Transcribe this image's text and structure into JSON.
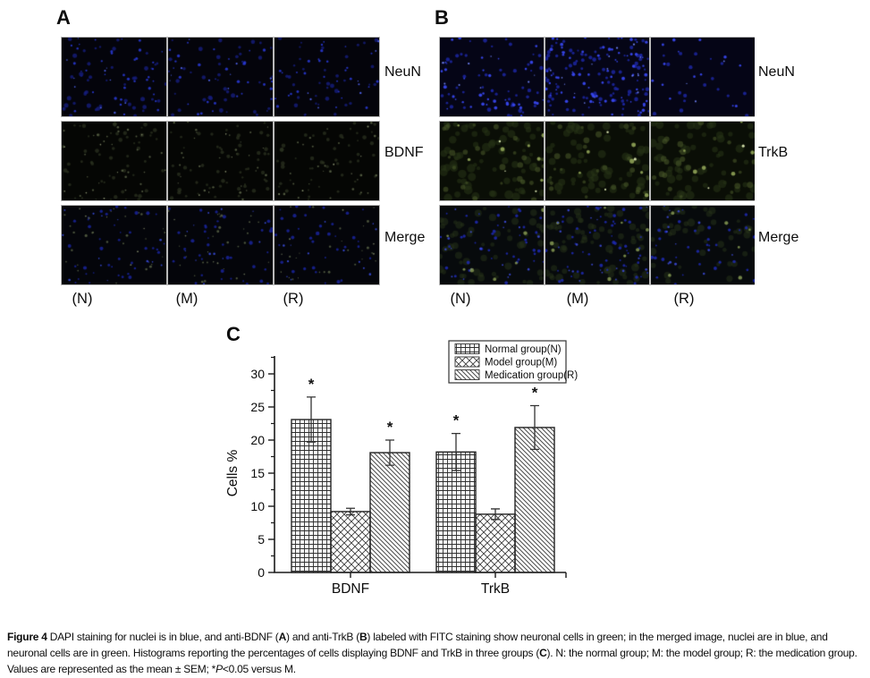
{
  "figure": {
    "panel_a": {
      "label": "A",
      "rows": [
        {
          "label": "NeuN",
          "stain": "dapiDim"
        },
        {
          "label": "BDNF",
          "stain": "fitcFaint"
        },
        {
          "label": "Merge",
          "stain": "mergeA"
        }
      ],
      "columns": [
        "(N)",
        "(M)",
        "(R)"
      ]
    },
    "panel_b": {
      "label": "B",
      "rows": [
        {
          "label": "NeuN",
          "stain": "dapiBright"
        },
        {
          "label": "TrkB",
          "stain": "fitcTrkB"
        },
        {
          "label": "Merge",
          "stain": "mergeB"
        }
      ],
      "columns": [
        "(N)",
        "(M)",
        "(R)"
      ]
    },
    "panel_c": {
      "label": "C"
    }
  },
  "chart_data": {
    "type": "bar",
    "title": "",
    "xlabel": "",
    "ylabel": "Cells %",
    "categories": [
      "BDNF",
      "TrkB"
    ],
    "yticks": [
      0,
      5,
      10,
      15,
      20,
      25,
      30
    ],
    "ylim": [
      0,
      32.5
    ],
    "grid": false,
    "legend_position": "top-right",
    "significance_marker": "*",
    "series": [
      {
        "name": "Normal group(N)",
        "pattern": "grid",
        "values": [
          23.1,
          18.2
        ],
        "errors": [
          3.4,
          2.8
        ],
        "significant": [
          true,
          true
        ]
      },
      {
        "name": "Model group(M)",
        "pattern": "crosshatch",
        "values": [
          9.2,
          8.8
        ],
        "errors": [
          0.5,
          0.8
        ],
        "significant": [
          false,
          false
        ]
      },
      {
        "name": "Medication group(R)",
        "pattern": "diagonal",
        "values": [
          18.1,
          21.9
        ],
        "errors": [
          1.9,
          3.3
        ],
        "significant": [
          true,
          true
        ]
      }
    ]
  },
  "caption": {
    "segments": [
      {
        "text": "Figure 4 ",
        "bold": true
      },
      {
        "text": "DAPI staining for nuclei is in blue, and anti-BDNF ("
      },
      {
        "text": "A",
        "bold": true
      },
      {
        "text": ") and anti-TrkB ("
      },
      {
        "text": "B",
        "bold": true
      },
      {
        "text": ") labeled with FITC staining show neuronal cells in green; in the merged image, nuclei are in blue, and neuronal cells are in green. Histograms reporting the percentages of cells displaying BDNF and TrkB in three groups ("
      },
      {
        "text": "C",
        "bold": true
      },
      {
        "text": "). N: the normal group; M: the model group; R: the medication group. Values are represented as the mean ± SEM; *"
      },
      {
        "text": "P",
        "italic": true
      },
      {
        "text": "<0.05 versus M."
      }
    ]
  },
  "colors": {
    "dapi_blue": "#3949e0",
    "fitc_green": "#9db45e",
    "axis": "#1a1a1a",
    "tile_separator": "#b9b9b9",
    "bar_fill": "#ffffff",
    "bar_outline": "#222222"
  }
}
